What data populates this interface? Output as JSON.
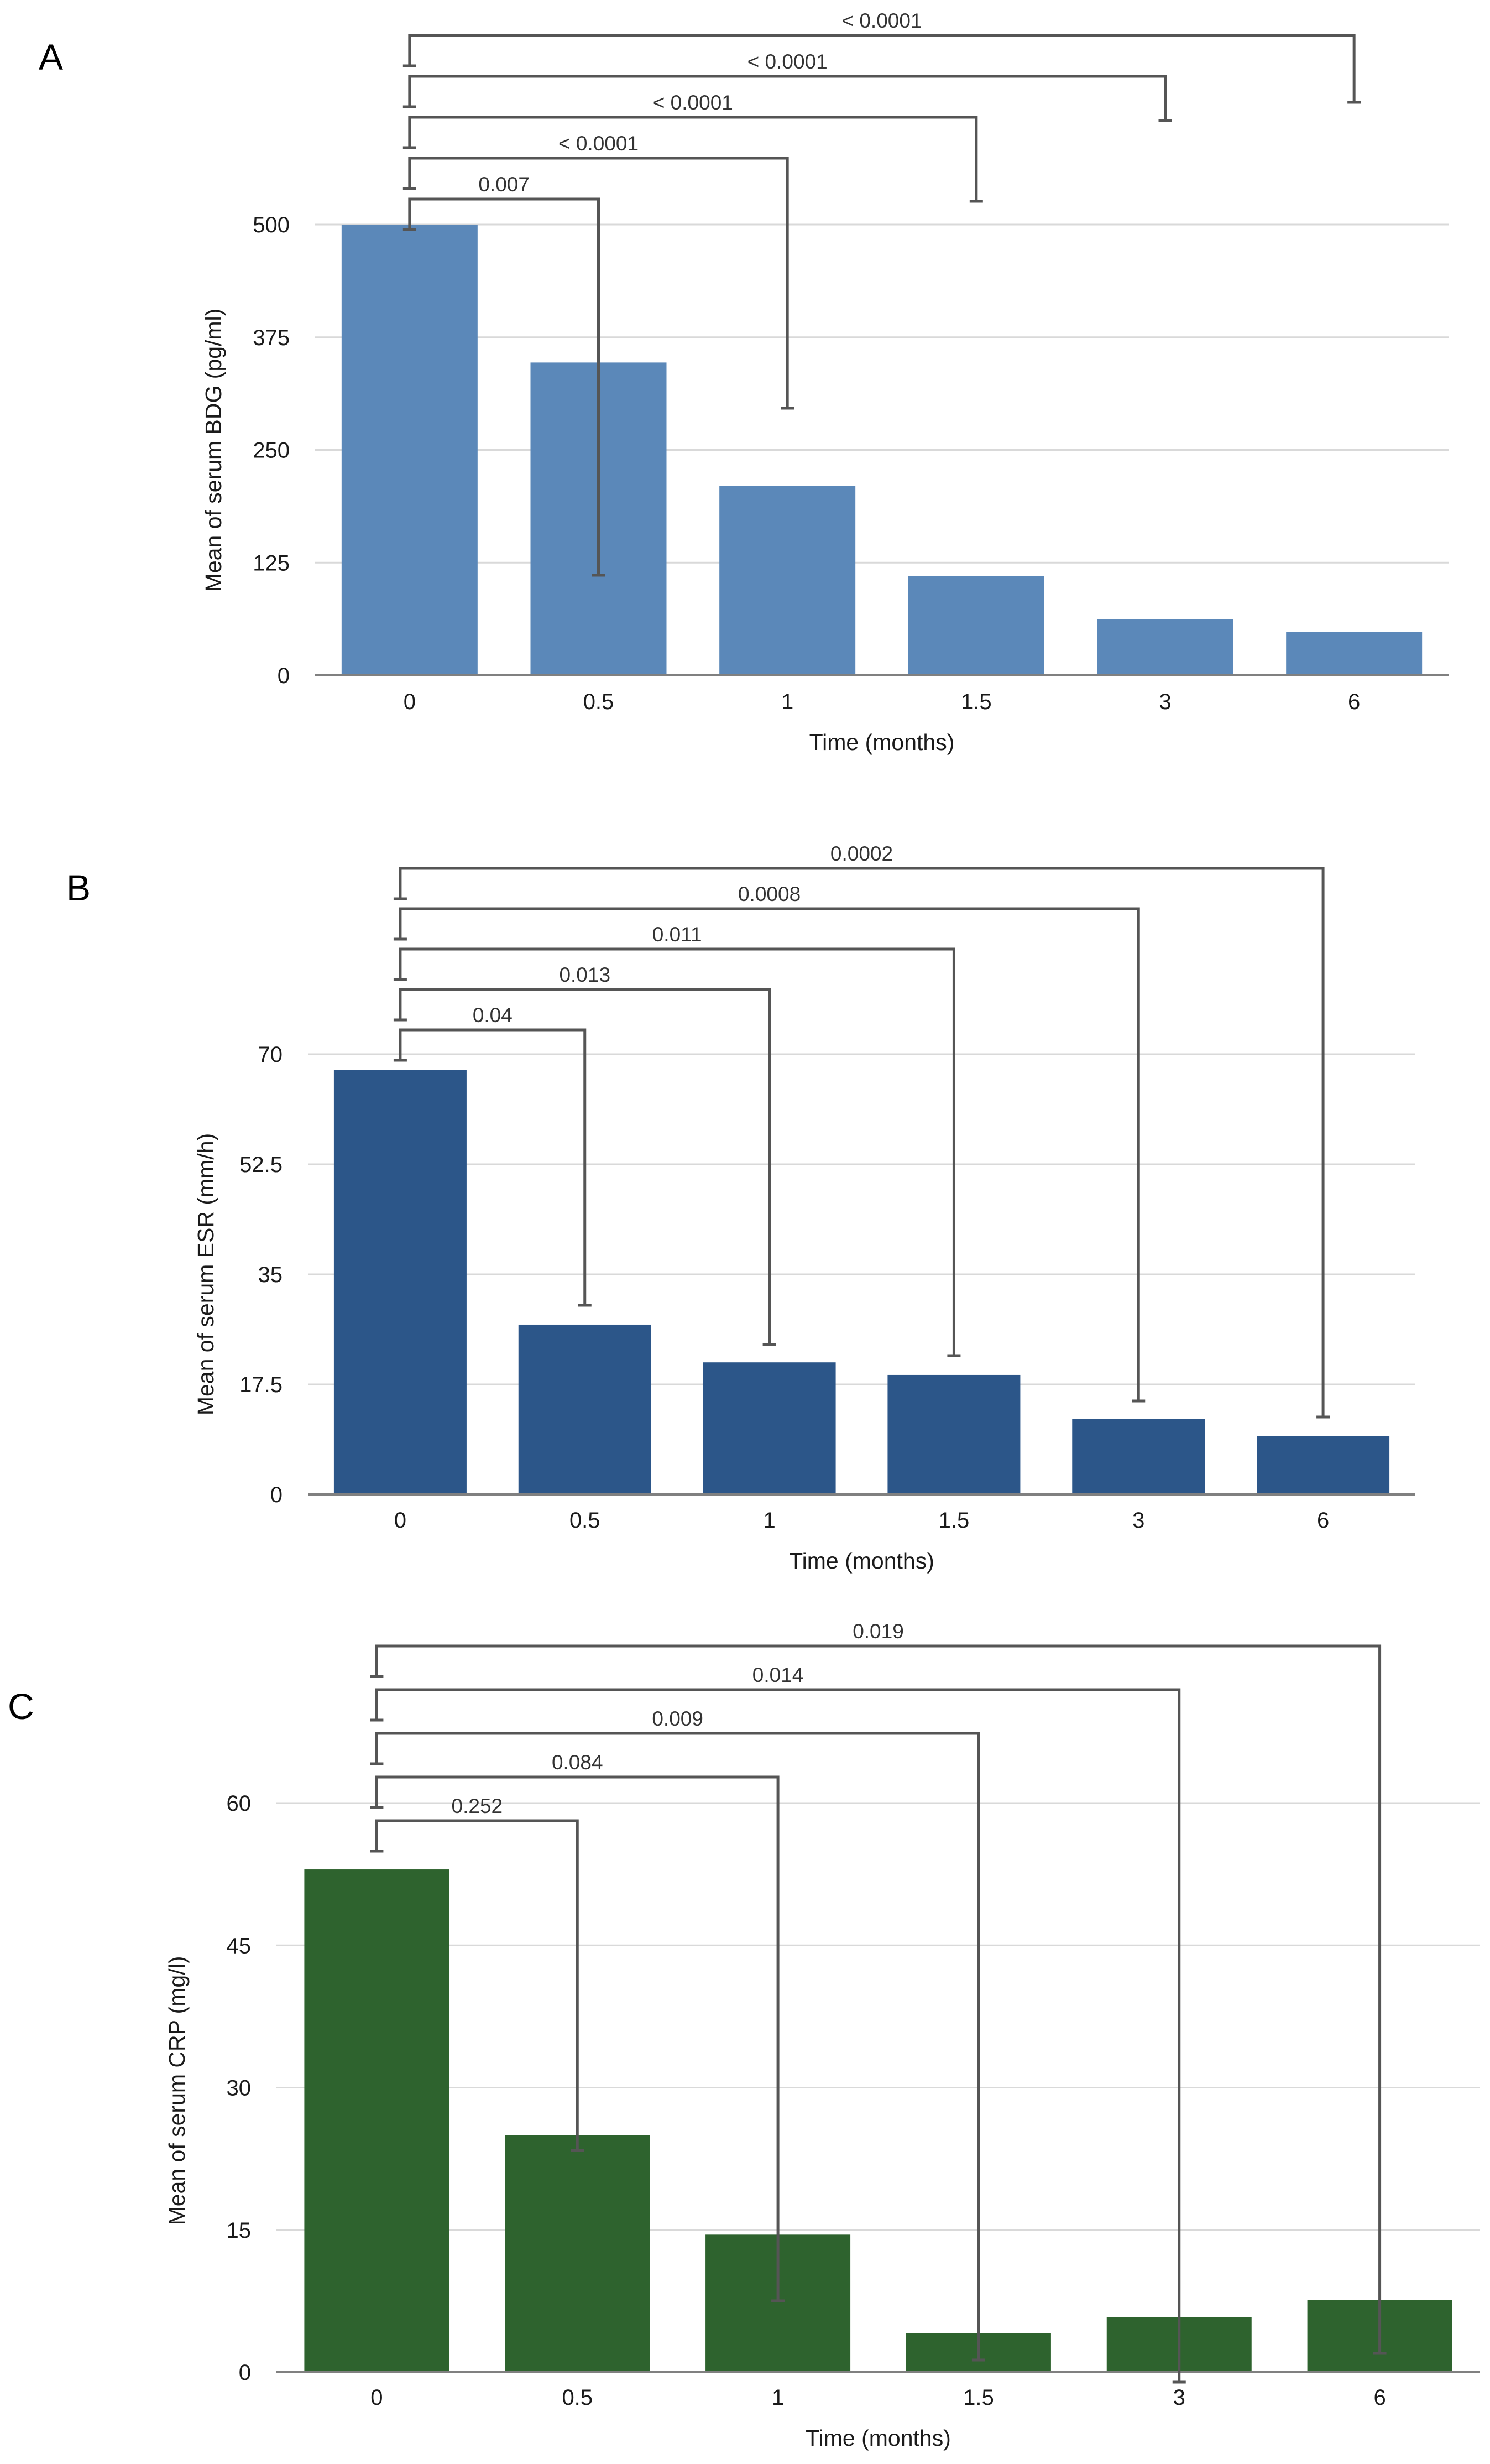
{
  "chart_data": [
    {
      "type": "bar",
      "panel": "A",
      "title": "",
      "xlabel": "Time (months)",
      "ylabel": "Mean of serum BDG (pg/ml)",
      "categories": [
        "0",
        "0.5",
        "1",
        "1.5",
        "3",
        "6"
      ],
      "values": [
        500,
        347,
        210,
        110,
        62,
        48
      ],
      "ylim": [
        0,
        500
      ],
      "yticks": [
        "0",
        "125",
        "250",
        "375",
        "500"
      ],
      "grid": true,
      "bar_color": "#5b88b9",
      "comparisons": [
        {
          "from": "0",
          "to": "0.5",
          "p": "0.007"
        },
        {
          "from": "0",
          "to": "1",
          "p": "< 0.0001"
        },
        {
          "from": "0",
          "to": "1.5",
          "p": "< 0.0001"
        },
        {
          "from": "0",
          "to": "3",
          "p": "< 0.0001"
        },
        {
          "from": "0",
          "to": "6",
          "p": "< 0.0001"
        }
      ]
    },
    {
      "type": "bar",
      "panel": "B",
      "title": "",
      "xlabel": "Time (months)",
      "ylabel": "Mean of serum ESR (mm/h)",
      "categories": [
        "0",
        "0.5",
        "1",
        "1.5",
        "3",
        "6"
      ],
      "values": [
        67.5,
        27,
        21,
        19,
        12,
        9.3
      ],
      "ylim": [
        0,
        70
      ],
      "yticks": [
        "0",
        "17.5",
        "35",
        "52.5",
        "70"
      ],
      "grid": true,
      "bar_color": "#2c5689",
      "comparisons": [
        {
          "from": "0",
          "to": "0.5",
          "p": "0.04"
        },
        {
          "from": "0",
          "to": "1",
          "p": "0.013"
        },
        {
          "from": "0",
          "to": "1.5",
          "p": "0.011"
        },
        {
          "from": "0",
          "to": "3",
          "p": "0.0008"
        },
        {
          "from": "0",
          "to": "6",
          "p": "0.0002"
        }
      ]
    },
    {
      "type": "bar",
      "panel": "C",
      "title": "",
      "xlabel": "Time (months)",
      "ylabel": "Mean of serum CRP (mg/l)",
      "categories": [
        "0",
        "0.5",
        "1",
        "1.5",
        "3",
        "6"
      ],
      "values": [
        53,
        25,
        14.5,
        4.1,
        5.8,
        7.6
      ],
      "ylim": [
        0,
        60
      ],
      "yticks": [
        "0",
        "15",
        "30",
        "45",
        "60"
      ],
      "grid": true,
      "bar_color": "#2e632e",
      "comparisons": [
        {
          "from": "0",
          "to": "0.5",
          "p": "0.252"
        },
        {
          "from": "0",
          "to": "1",
          "p": "0.084"
        },
        {
          "from": "0",
          "to": "1.5",
          "p": "0.009"
        },
        {
          "from": "0",
          "to": "3",
          "p": "0.014"
        },
        {
          "from": "0",
          "to": "6",
          "p": "0.019"
        }
      ]
    }
  ]
}
